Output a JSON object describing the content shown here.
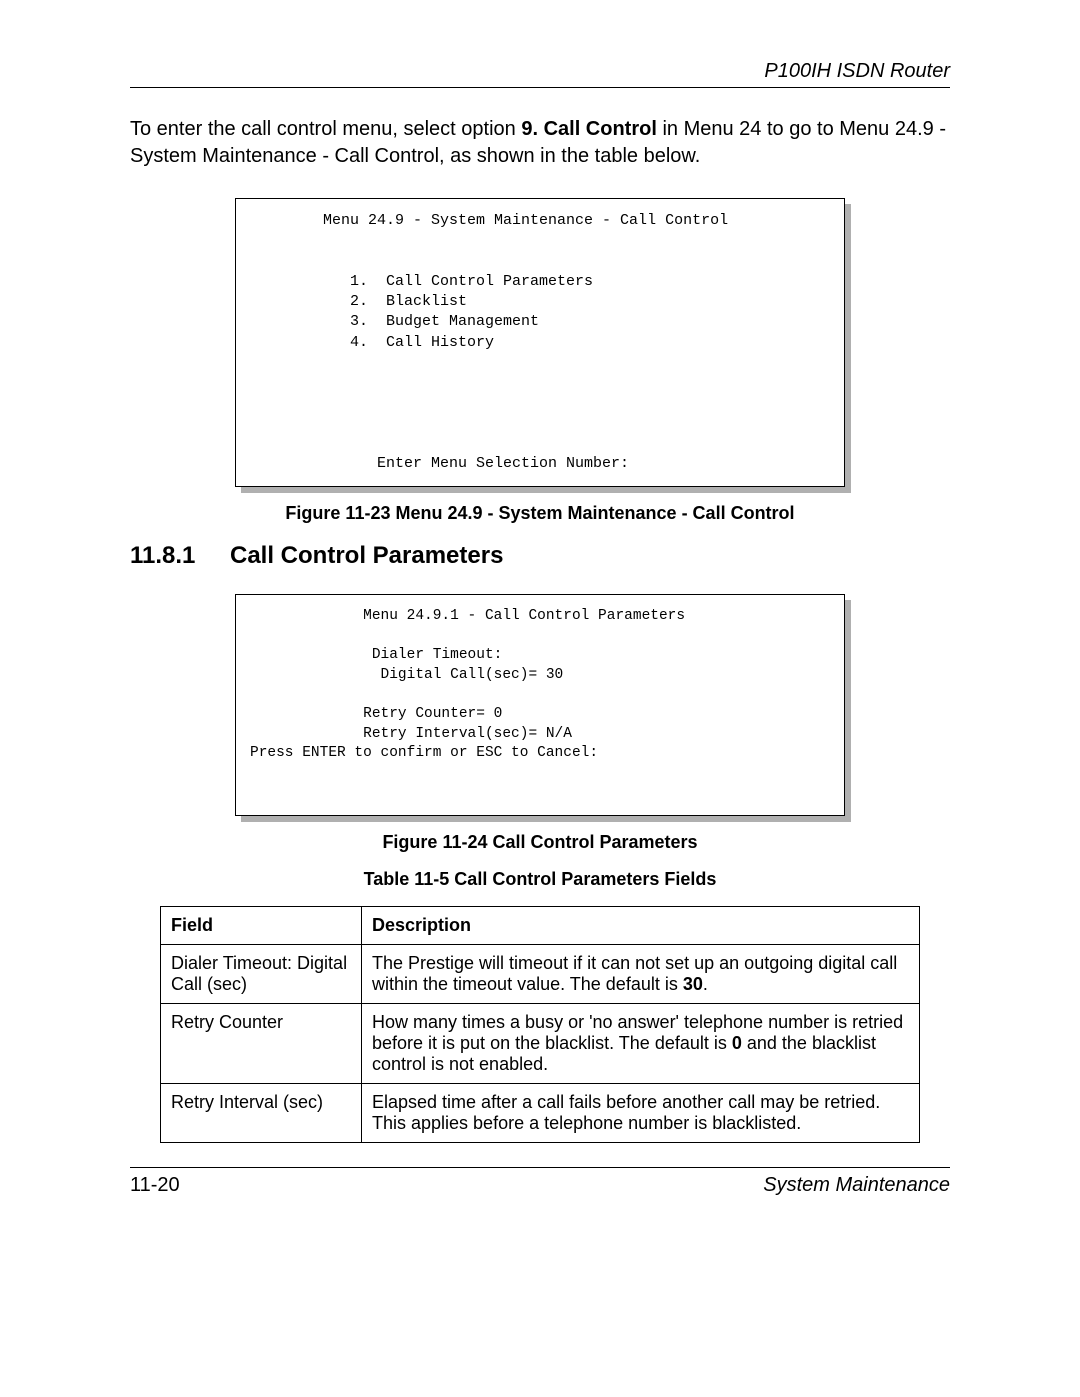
{
  "header": {
    "doc_title": "P100IH ISDN Router"
  },
  "intro": {
    "prefix": "To enter the call control menu, select option ",
    "option_bold": "9. Call Control",
    "suffix": " in Menu 24 to go to Menu 24.9 - System Maintenance - Call Control, as shown in the table below."
  },
  "terminal1": {
    "title": "Menu 24.9 - System Maintenance - Call Control",
    "items": [
      "1.  Call Control Parameters",
      "2.  Blacklist",
      "3.  Budget Management",
      "4.  Call History"
    ],
    "prompt": "Enter Menu Selection Number:",
    "font_family": "Courier New",
    "font_size_pt": 11,
    "border_color": "#000000",
    "shadow_color": "#b0b0b0",
    "background_color": "#ffffff"
  },
  "figure23_caption": "Figure 11-23 Menu 24.9 - System Maintenance - Call Control",
  "section": {
    "number": "11.8.1",
    "title": "Call Control Parameters"
  },
  "terminal2": {
    "title": "Menu 24.9.1 - Call Control Parameters",
    "lines": [
      "Dialer Timeout:",
      " Digital Call(sec)= 30",
      "",
      "Retry Counter= 0",
      "Retry Interval(sec)= N/A"
    ],
    "footer": "Press ENTER to confirm or ESC to Cancel:",
    "font_family": "Courier New",
    "font_size_pt": 11,
    "border_color": "#000000",
    "shadow_color": "#b0b0b0",
    "background_color": "#ffffff"
  },
  "figure24_caption": "Figure 11-24 Call Control Parameters",
  "table_caption": "Table 11-5 Call Control Parameters Fields",
  "table": {
    "columns": [
      "Field",
      "Description"
    ],
    "rows": [
      {
        "field": "Dialer Timeout: Digital Call (sec)",
        "desc_before": "The Prestige will timeout if it can not set up an outgoing digital call within the timeout value. The default is ",
        "desc_bold": "30",
        "desc_after": "."
      },
      {
        "field": "Retry Counter",
        "desc_before": "How many times a busy or 'no answer' telephone number is retried before it is put on the blacklist. The default is ",
        "desc_bold": "0",
        "desc_after": " and the blacklist control is not enabled."
      },
      {
        "field": "Retry Interval (sec)",
        "desc_before": "Elapsed time after a call fails before another call may be retried. This applies before a telephone number is blacklisted.",
        "desc_bold": "",
        "desc_after": ""
      }
    ],
    "border_color": "#000000",
    "header_font_weight": "bold",
    "font_size_pt": 13
  },
  "footer": {
    "left": "11-20",
    "right": "System Maintenance"
  }
}
